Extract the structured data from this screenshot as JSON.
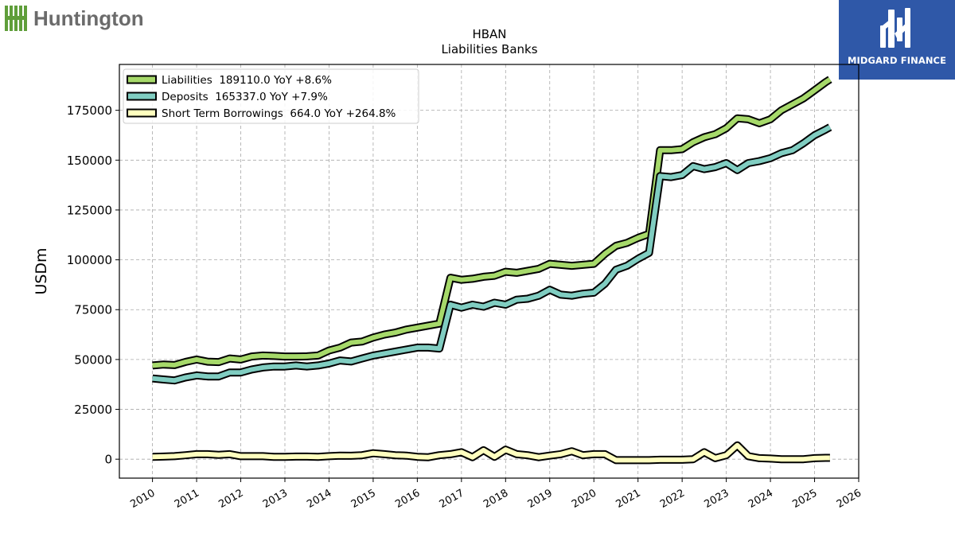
{
  "brand_left": {
    "name": "Huntington",
    "color": "#5f9e3a",
    "text_color": "#6b6b6b"
  },
  "brand_right": {
    "name": "MIDGARD FINANCE",
    "bg": "#2f58a8"
  },
  "chart_data": {
    "type": "line",
    "title": "HBAN",
    "subtitle": "Liabilities Banks",
    "ylabel": "USDm",
    "xlabel": "",
    "xlim": [
      2009.25,
      2026.0
    ],
    "ylim": [
      -9500,
      198000
    ],
    "x_ticks": [
      2010,
      2011,
      2012,
      2013,
      2014,
      2015,
      2016,
      2017,
      2018,
      2019,
      2020,
      2021,
      2022,
      2023,
      2024,
      2025,
      2026
    ],
    "y_ticks": [
      0,
      25000,
      50000,
      75000,
      100000,
      125000,
      150000,
      175000
    ],
    "grid": true,
    "legend_position": "top-left",
    "x": [
      2010.0,
      2010.25,
      2010.5,
      2010.75,
      2011.0,
      2011.25,
      2011.5,
      2011.75,
      2012.0,
      2012.25,
      2012.5,
      2012.75,
      2013.0,
      2013.25,
      2013.5,
      2013.75,
      2014.0,
      2014.25,
      2014.5,
      2014.75,
      2015.0,
      2015.25,
      2015.5,
      2015.75,
      2016.0,
      2016.25,
      2016.5,
      2016.75,
      2017.0,
      2017.25,
      2017.5,
      2017.75,
      2018.0,
      2018.25,
      2018.5,
      2018.75,
      2019.0,
      2019.25,
      2019.5,
      2019.75,
      2020.0,
      2020.25,
      2020.5,
      2020.75,
      2021.0,
      2021.25,
      2021.5,
      2021.75,
      2022.0,
      2022.25,
      2022.5,
      2022.75,
      2023.0,
      2023.25,
      2023.5,
      2023.75,
      2024.0,
      2024.25,
      2024.5,
      2024.75,
      2025.0,
      2025.25,
      2025.35
    ],
    "series": [
      {
        "name": "Liabilities",
        "legend": "Liabilities  189110.0 YoY +8.6%",
        "color": "#a6d96a",
        "values": [
          47000,
          47500,
          47200,
          48800,
          50000,
          48900,
          48700,
          50500,
          50000,
          51500,
          52000,
          51800,
          51500,
          51500,
          51600,
          52000,
          54500,
          56000,
          58500,
          59000,
          61000,
          62500,
          63500,
          65000,
          66000,
          67000,
          68000,
          91000,
          90000,
          90500,
          91500,
          92000,
          94000,
          93500,
          94500,
          95500,
          98000,
          97500,
          97000,
          97500,
          98000,
          103000,
          107000,
          108500,
          111000,
          113000,
          155000,
          155000,
          155500,
          159000,
          161500,
          163000,
          166000,
          171000,
          170500,
          168500,
          170500,
          175000,
          178000,
          181000,
          185000,
          189110,
          190500
        ]
      },
      {
        "name": "Deposits",
        "legend": "Deposits  165337.0 YoY +7.9%",
        "color": "#80cdc1",
        "values": [
          40500,
          40000,
          39500,
          41000,
          42000,
          41500,
          41500,
          43500,
          43500,
          45000,
          46000,
          46500,
          46500,
          47000,
          46500,
          47000,
          48000,
          49500,
          49000,
          50500,
          52000,
          53000,
          54000,
          55000,
          56000,
          56000,
          55500,
          77500,
          76000,
          77500,
          76500,
          78500,
          77500,
          80000,
          80500,
          82000,
          85000,
          82500,
          82000,
          83000,
          83500,
          88000,
          95000,
          97000,
          100500,
          103500,
          142000,
          141500,
          142500,
          147000,
          145500,
          146500,
          148500,
          145000,
          148500,
          149500,
          151000,
          153500,
          155000,
          158500,
          162500,
          165337,
          166500
        ]
      },
      {
        "name": "Short Term Borrowings",
        "legend": "Short Term Borrowings  664.0 YoY +264.8%",
        "color": "#ffffbf",
        "values": [
          1200,
          1300,
          1500,
          2000,
          2500,
          2500,
          2200,
          2500,
          1500,
          1500,
          1500,
          1200,
          1200,
          1300,
          1300,
          1200,
          1500,
          1800,
          1700,
          2000,
          3000,
          2500,
          2000,
          1800,
          1200,
          1000,
          2000,
          2500,
          3500,
          1000,
          4500,
          1200,
          4800,
          2500,
          2000,
          1000,
          1800,
          2500,
          4000,
          2000,
          2500,
          2500,
          -500,
          -500,
          -500,
          -500,
          -300,
          -300,
          -300,
          0,
          3500,
          500,
          2000,
          7000,
          1500,
          500,
          300,
          0,
          0,
          0,
          500,
          664,
          664
        ]
      }
    ]
  }
}
